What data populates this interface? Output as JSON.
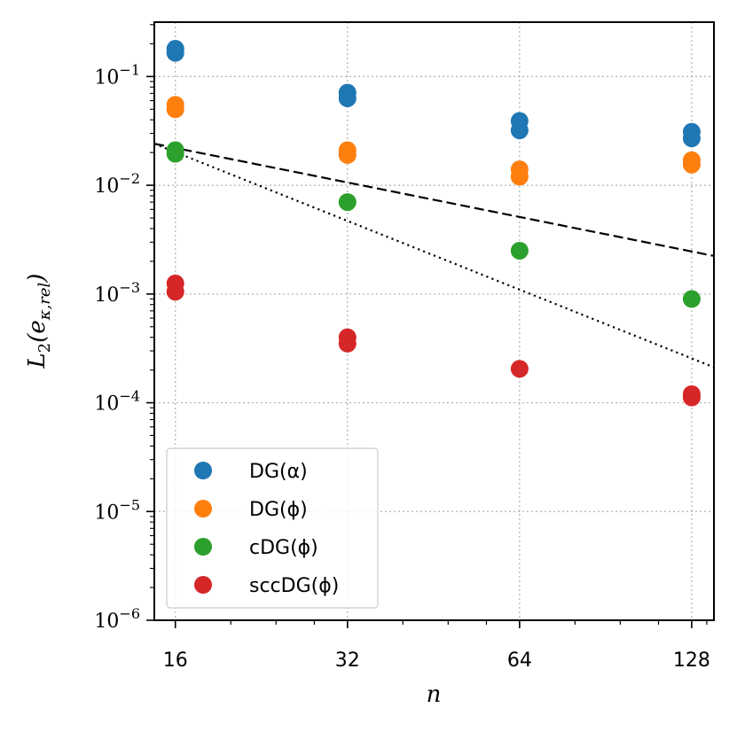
{
  "chart_data": {
    "type": "scatter",
    "xscale": "log2",
    "yscale": "log10",
    "xlabel": "n",
    "ylabel": "L2(e_κ,rel)",
    "xlim": [
      14.7,
      140
    ],
    "ylim_exponents": [
      -6,
      -0.5
    ],
    "xticks": [
      16,
      32,
      64,
      128
    ],
    "xtick_labels": [
      "16",
      "32",
      "64",
      "128"
    ],
    "yticks": [
      {
        "value": 0.1,
        "base": "10",
        "exp": "−1"
      },
      {
        "value": 0.01,
        "base": "10",
        "exp": "−2"
      },
      {
        "value": 0.001,
        "base": "10",
        "exp": "−3"
      },
      {
        "value": 0.0001,
        "base": "10",
        "exp": "−4"
      },
      {
        "value": 1e-05,
        "base": "10",
        "exp": "−5"
      },
      {
        "value": 1e-06,
        "base": "10",
        "exp": "−6"
      }
    ],
    "grid": true,
    "legend_position": "lower-left",
    "series": [
      {
        "name": "DG(α)",
        "color": "#1f77b4",
        "points": [
          [
            16,
            0.18
          ],
          [
            16,
            0.165
          ],
          [
            32,
            0.071
          ],
          [
            32,
            0.063
          ],
          [
            64,
            0.039
          ],
          [
            64,
            0.032
          ],
          [
            128,
            0.031
          ],
          [
            128,
            0.027
          ]
        ]
      },
      {
        "name": "DG(ϕ)",
        "color": "#ff7f0e",
        "points": [
          [
            16,
            0.055
          ],
          [
            16,
            0.05
          ],
          [
            32,
            0.021
          ],
          [
            32,
            0.019
          ],
          [
            64,
            0.014
          ],
          [
            64,
            0.012
          ],
          [
            128,
            0.017
          ],
          [
            128,
            0.0155
          ]
        ]
      },
      {
        "name": "cDG(ϕ)",
        "color": "#2ca02c",
        "points": [
          [
            16,
            0.021
          ],
          [
            16,
            0.0195
          ],
          [
            32,
            0.007
          ],
          [
            64,
            0.0025
          ],
          [
            128,
            0.0009
          ]
        ]
      },
      {
        "name": "sccDG(ϕ)",
        "color": "#d62728",
        "points": [
          [
            16,
            0.00125
          ],
          [
            16,
            0.00105
          ],
          [
            32,
            0.0004
          ],
          [
            32,
            0.00035
          ],
          [
            64,
            0.000205
          ],
          [
            128,
            0.00012
          ],
          [
            128,
            0.000112
          ]
        ]
      }
    ],
    "reference_lines": [
      {
        "name": "first-order-reference",
        "style": "dashed",
        "points": [
          [
            14.7,
            0.0241
          ],
          [
            140,
            0.00224
          ]
        ]
      },
      {
        "name": "second-order-reference",
        "style": "dotted",
        "points": [
          [
            14.7,
            0.0241
          ],
          [
            140,
            0.000212
          ]
        ]
      }
    ]
  }
}
